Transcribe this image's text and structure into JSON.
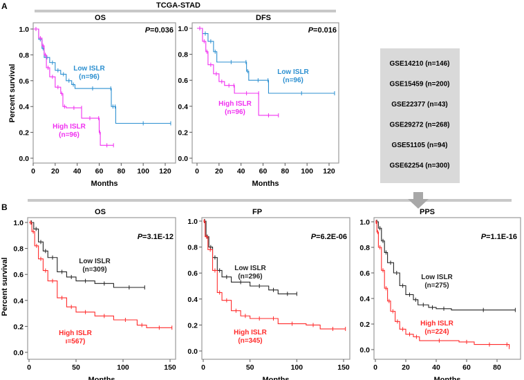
{
  "panel_a": {
    "letter": "A",
    "title": "TCGA-STAD"
  },
  "panel_b": {
    "letter": "B"
  },
  "datasets_box": {
    "items": [
      "GSE14210 (n=146)",
      "GSE15459 (n=200)",
      "GSE22377 (n=43)",
      "GSE29272 (n=268)",
      "GSE51105 (n=94)",
      "GSE62254 (n=300)"
    ],
    "arrow_icon": "arrow-down-icon"
  },
  "colors": {
    "low_a": "#2b8fd0",
    "high_a": "#f030f0",
    "low_b": "#222222",
    "high_b": "#ff2a2a",
    "bar": "#c8c8c8",
    "frame": "#9a9a9a"
  },
  "chart_data": [
    {
      "type": "line",
      "title": "OS",
      "pvalue_prefix": "P",
      "pvalue": "=0.036",
      "xlabel": "Months",
      "ylabel": "Percent survival",
      "xlim": [
        0,
        130
      ],
      "ylim": [
        0,
        1
      ],
      "xticks": [
        "0",
        "20",
        "40",
        "60",
        "80",
        "100",
        "120"
      ],
      "xtick_values": [
        0,
        20,
        40,
        60,
        80,
        100,
        120
      ],
      "yticks": [
        "0.0",
        "0.2",
        "0.4",
        "0.6",
        "0.8",
        "1.0"
      ],
      "ytick_values": [
        0,
        0.2,
        0.4,
        0.6,
        0.8,
        1.0
      ],
      "series": [
        {
          "name": "Low ISLR",
          "n_label": "(n=96)",
          "color_key": "low_a",
          "points": [
            [
              0,
              1
            ],
            [
              5,
              0.92
            ],
            [
              8,
              0.85
            ],
            [
              10,
              0.78
            ],
            [
              15,
              0.74
            ],
            [
              20,
              0.68
            ],
            [
              25,
              0.65
            ],
            [
              30,
              0.6
            ],
            [
              35,
              0.57
            ],
            [
              38,
              0.54
            ],
            [
              70,
              0.54
            ],
            [
              71,
              0.4
            ],
            [
              74,
              0.4
            ],
            [
              75,
              0.27
            ],
            [
              125,
              0.27
            ]
          ]
        },
        {
          "name": "High ISLR",
          "n_label": "(n=96)",
          "color_key": "high_a",
          "points": [
            [
              0,
              1
            ],
            [
              5,
              0.93
            ],
            [
              8,
              0.87
            ],
            [
              10,
              0.8
            ],
            [
              12,
              0.7
            ],
            [
              15,
              0.63
            ],
            [
              20,
              0.55
            ],
            [
              25,
              0.5
            ],
            [
              27,
              0.4
            ],
            [
              30,
              0.39
            ],
            [
              44,
              0.39
            ],
            [
              44,
              0.31
            ],
            [
              59,
              0.31
            ],
            [
              60,
              0.2
            ],
            [
              61,
              0.1
            ],
            [
              73,
              0.1
            ]
          ]
        }
      ]
    },
    {
      "type": "line",
      "title": "DFS",
      "pvalue_prefix": "P",
      "pvalue": "=0.016",
      "xlabel": "Months",
      "ylabel": "",
      "xlim": [
        0,
        130
      ],
      "ylim": [
        0,
        1
      ],
      "xticks": [
        "0",
        "20",
        "40",
        "60",
        "80",
        "100",
        "120"
      ],
      "xtick_values": [
        0,
        20,
        40,
        60,
        80,
        100,
        120
      ],
      "yticks": [
        "0.0",
        "0.2",
        "0.4",
        "0.6",
        "0.8",
        "1.0"
      ],
      "ytick_values": [
        0,
        0.2,
        0.4,
        0.6,
        0.8,
        1.0
      ],
      "series": [
        {
          "name": "Low ISLR",
          "n_label": "(n=96)",
          "color_key": "low_a",
          "points": [
            [
              0,
              1
            ],
            [
              5,
              0.96
            ],
            [
              10,
              0.9
            ],
            [
              15,
              0.82
            ],
            [
              18,
              0.74
            ],
            [
              44,
              0.74
            ],
            [
              45,
              0.67
            ],
            [
              47,
              0.6
            ],
            [
              64,
              0.6
            ],
            [
              65,
              0.5
            ],
            [
              125,
              0.5
            ]
          ]
        },
        {
          "name": "High ISLR",
          "n_label": "(n=96)",
          "color_key": "high_a",
          "points": [
            [
              0,
              1
            ],
            [
              5,
              0.9
            ],
            [
              8,
              0.82
            ],
            [
              10,
              0.72
            ],
            [
              15,
              0.65
            ],
            [
              20,
              0.59
            ],
            [
              25,
              0.56
            ],
            [
              33,
              0.56
            ],
            [
              34,
              0.5
            ],
            [
              56,
              0.5
            ],
            [
              56,
              0.33
            ],
            [
              74,
              0.33
            ]
          ]
        }
      ]
    },
    {
      "type": "line",
      "title": "OS",
      "pvalue_prefix": "P",
      "pvalue": "=3.1E-12",
      "xlabel": "Months",
      "ylabel": "Percent survival",
      "xlim": [
        0,
        155
      ],
      "ylim": [
        0,
        1
      ],
      "xticks": [
        "0",
        "50",
        "100",
        "150"
      ],
      "xtick_values": [
        0,
        50,
        100,
        150
      ],
      "yticks": [
        "0.0",
        "0.2",
        "0.4",
        "0.6",
        "0.8",
        "1.0"
      ],
      "ytick_values": [
        0,
        0.2,
        0.4,
        0.6,
        0.8,
        1.0
      ],
      "series": [
        {
          "name": "Low ISLR",
          "n_label": "(n=309)",
          "color_key": "low_b",
          "points": [
            [
              0,
              1
            ],
            [
              5,
              0.95
            ],
            [
              10,
              0.85
            ],
            [
              15,
              0.78
            ],
            [
              20,
              0.73
            ],
            [
              30,
              0.62
            ],
            [
              40,
              0.58
            ],
            [
              50,
              0.55
            ],
            [
              70,
              0.53
            ],
            [
              90,
              0.5
            ],
            [
              123,
              0.5
            ]
          ]
        },
        {
          "name": "High ISLR",
          "n_label": "ı=567)",
          "color_key": "high_b",
          "points": [
            [
              0,
              1
            ],
            [
              3,
              0.93
            ],
            [
              6,
              0.82
            ],
            [
              10,
              0.72
            ],
            [
              15,
              0.63
            ],
            [
              20,
              0.55
            ],
            [
              30,
              0.42
            ],
            [
              40,
              0.35
            ],
            [
              50,
              0.31
            ],
            [
              70,
              0.28
            ],
            [
              90,
              0.25
            ],
            [
              115,
              0.21
            ],
            [
              125,
              0.19
            ],
            [
              152,
              0.19
            ]
          ]
        }
      ]
    },
    {
      "type": "line",
      "title": "FP",
      "pvalue_prefix": "P",
      "pvalue": "=6.2E-06",
      "xlabel": "Months",
      "ylabel": "",
      "xlim": [
        0,
        155
      ],
      "ylim": [
        0,
        1
      ],
      "xticks": [
        "0",
        "50",
        "100",
        "150"
      ],
      "xtick_values": [
        0,
        50,
        100,
        150
      ],
      "yticks": [
        "0.0",
        "0.2",
        "0.4",
        "0.6",
        "0.8",
        "1.0"
      ],
      "ytick_values": [
        0,
        0.2,
        0.4,
        0.6,
        0.8,
        1.0
      ],
      "series": [
        {
          "name": "Low ISLR",
          "n_label": "(n=296)",
          "color_key": "low_b",
          "points": [
            [
              0,
              1
            ],
            [
              3,
              0.88
            ],
            [
              6,
              0.8
            ],
            [
              10,
              0.72
            ],
            [
              15,
              0.62
            ],
            [
              20,
              0.57
            ],
            [
              30,
              0.53
            ],
            [
              50,
              0.5
            ],
            [
              70,
              0.47
            ],
            [
              80,
              0.44
            ],
            [
              100,
              0.44
            ]
          ]
        },
        {
          "name": "High ISLR",
          "n_label": "(n=345)",
          "color_key": "high_b",
          "points": [
            [
              0,
              1
            ],
            [
              2,
              0.88
            ],
            [
              5,
              0.78
            ],
            [
              10,
              0.62
            ],
            [
              15,
              0.45
            ],
            [
              20,
              0.39
            ],
            [
              30,
              0.31
            ],
            [
              40,
              0.27
            ],
            [
              50,
              0.25
            ],
            [
              70,
              0.25
            ],
            [
              80,
              0.21
            ],
            [
              110,
              0.2
            ],
            [
              125,
              0.17
            ],
            [
              152,
              0.17
            ]
          ]
        }
      ]
    },
    {
      "type": "line",
      "title": "PPS",
      "pvalue_prefix": "P",
      "pvalue": "=1.1E-16",
      "xlabel": "Months",
      "ylabel": "",
      "xlim": [
        0,
        95
      ],
      "ylim": [
        0,
        1
      ],
      "xticks": [
        "0",
        "20",
        "40",
        "60",
        "80"
      ],
      "xtick_values": [
        0,
        20,
        40,
        60,
        80
      ],
      "yticks": [
        "0.0",
        "0.2",
        "0.4",
        "0.6",
        "0.8",
        "1.0"
      ],
      "ytick_values": [
        0,
        0.2,
        0.4,
        0.6,
        0.8,
        1.0
      ],
      "series": [
        {
          "name": "Low ISLR",
          "n_label": "(n=275)",
          "color_key": "low_b",
          "points": [
            [
              0,
              1
            ],
            [
              2,
              0.95
            ],
            [
              4,
              0.85
            ],
            [
              6,
              0.76
            ],
            [
              8,
              0.68
            ],
            [
              12,
              0.6
            ],
            [
              16,
              0.5
            ],
            [
              20,
              0.43
            ],
            [
              25,
              0.39
            ],
            [
              28,
              0.35
            ],
            [
              35,
              0.33
            ],
            [
              40,
              0.32
            ],
            [
              50,
              0.31
            ],
            [
              92,
              0.31
            ]
          ]
        },
        {
          "name": "High ISLR",
          "n_label": "(n=224)",
          "color_key": "high_b",
          "points": [
            [
              0,
              1
            ],
            [
              1,
              0.92
            ],
            [
              2,
              0.8
            ],
            [
              4,
              0.62
            ],
            [
              6,
              0.48
            ],
            [
              8,
              0.38
            ],
            [
              10,
              0.3
            ],
            [
              13,
              0.22
            ],
            [
              16,
              0.16
            ],
            [
              20,
              0.12
            ],
            [
              25,
              0.1
            ],
            [
              29,
              0.07
            ],
            [
              55,
              0.06
            ],
            [
              65,
              0.04
            ],
            [
              85,
              0.04
            ],
            [
              88,
              0.02
            ]
          ]
        }
      ]
    }
  ]
}
